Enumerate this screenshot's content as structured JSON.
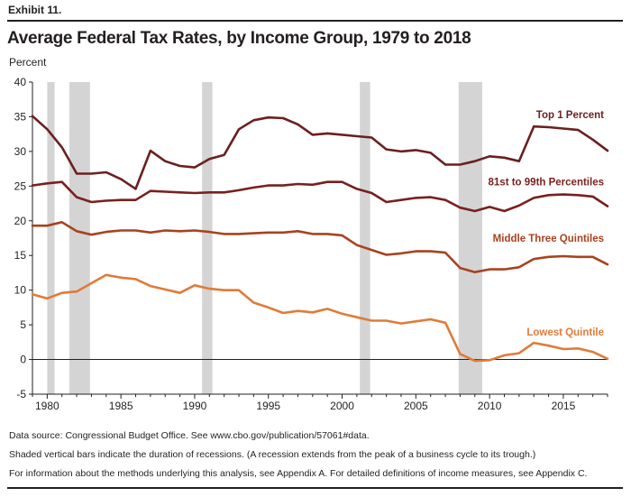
{
  "exhibit_label": "Exhibit 11.",
  "chart_data": {
    "type": "line",
    "title": "Average Federal Tax Rates, by Income Group, 1979 to 2018",
    "ylabel": "Percent",
    "xlabel": "",
    "xlim": [
      1979,
      2018
    ],
    "ylim": [
      -5,
      40
    ],
    "yticks": [
      -5,
      0,
      5,
      10,
      15,
      20,
      25,
      30,
      35,
      40
    ],
    "xticks": [
      1980,
      1985,
      1990,
      1995,
      2000,
      2005,
      2010,
      2015
    ],
    "grid": false,
    "legend": "direct labels at right end of lines",
    "recessions": [
      [
        1980,
        1980.5
      ],
      [
        1981.5,
        1982.9
      ],
      [
        1990.5,
        1991.2
      ],
      [
        2001.2,
        2001.9
      ],
      [
        2007.9,
        2009.5
      ]
    ],
    "x": [
      1979,
      1980,
      1981,
      1982,
      1983,
      1984,
      1985,
      1986,
      1987,
      1988,
      1989,
      1990,
      1991,
      1992,
      1993,
      1994,
      1995,
      1996,
      1997,
      1998,
      1999,
      2000,
      2001,
      2002,
      2003,
      2004,
      2005,
      2006,
      2007,
      2008,
      2009,
      2010,
      2011,
      2012,
      2013,
      2014,
      2015,
      2016,
      2017,
      2018
    ],
    "series": [
      {
        "name": "Top 1 Percent",
        "color": "#6b1f1f",
        "values": [
          35.1,
          33.2,
          30.6,
          26.8,
          26.8,
          27.0,
          26.0,
          24.6,
          30.1,
          28.6,
          27.9,
          27.7,
          28.9,
          29.5,
          33.2,
          34.5,
          34.9,
          34.8,
          33.9,
          32.4,
          32.6,
          32.4,
          32.2,
          32.0,
          30.3,
          30.0,
          30.2,
          29.8,
          28.1,
          28.1,
          28.6,
          29.3,
          29.1,
          28.6,
          33.6,
          33.5,
          33.3,
          33.1,
          31.7,
          30.1
        ]
      },
      {
        "name": "81st to 99th Percentiles",
        "color": "#7a1f1f",
        "values": [
          25.1,
          25.4,
          25.6,
          23.4,
          22.7,
          22.9,
          23.0,
          23.0,
          24.3,
          24.2,
          24.1,
          24.0,
          24.1,
          24.1,
          24.4,
          24.8,
          25.1,
          25.1,
          25.3,
          25.2,
          25.6,
          25.6,
          24.6,
          24.0,
          22.7,
          23.0,
          23.3,
          23.4,
          23.0,
          21.9,
          21.4,
          22.0,
          21.4,
          22.2,
          23.3,
          23.7,
          23.8,
          23.7,
          23.5,
          22.1
        ]
      },
      {
        "name": "Middle Three Quintiles",
        "color": "#a8421f",
        "values": [
          19.3,
          19.3,
          19.8,
          18.5,
          18.0,
          18.4,
          18.6,
          18.6,
          18.3,
          18.6,
          18.5,
          18.6,
          18.4,
          18.1,
          18.1,
          18.2,
          18.3,
          18.3,
          18.5,
          18.1,
          18.1,
          17.9,
          16.5,
          15.8,
          15.1,
          15.3,
          15.6,
          15.6,
          15.4,
          13.2,
          12.6,
          13.0,
          13.0,
          13.3,
          14.5,
          14.8,
          14.9,
          14.8,
          14.8,
          13.7
        ]
      },
      {
        "name": "Lowest Quintile",
        "color": "#e07b39",
        "values": [
          9.4,
          8.8,
          9.6,
          9.8,
          11.0,
          12.2,
          11.8,
          11.6,
          10.6,
          10.1,
          9.6,
          10.7,
          10.2,
          10.0,
          10.0,
          8.2,
          7.5,
          6.7,
          7.0,
          6.8,
          7.3,
          6.6,
          6.1,
          5.6,
          5.6,
          5.2,
          5.5,
          5.8,
          5.3,
          0.8,
          -0.2,
          -0.1,
          0.6,
          0.9,
          2.4,
          2.0,
          1.5,
          1.6,
          1.1,
          0.1
        ]
      }
    ]
  },
  "notes": [
    "Data source: Congressional Budget Office. See www.cbo.gov/publication/57061#data.",
    "Shaded vertical bars indicate the duration of recessions. (A recession extends from the peak of a business cycle to its trough.)",
    "For information about the methods underlying this analysis, see Appendix A. For detailed definitions of income measures, see Appendix C."
  ]
}
